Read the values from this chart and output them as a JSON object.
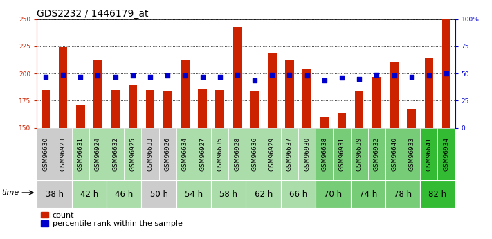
{
  "title": "GDS2232 / 1446179_at",
  "samples": [
    "GSM96630",
    "GSM96923",
    "GSM96631",
    "GSM96924",
    "GSM96632",
    "GSM96925",
    "GSM96633",
    "GSM96926",
    "GSM96634",
    "GSM96927",
    "GSM96635",
    "GSM96928",
    "GSM96636",
    "GSM96929",
    "GSM96637",
    "GSM96930",
    "GSM96638",
    "GSM96931",
    "GSM96639",
    "GSM96932",
    "GSM96640",
    "GSM96933",
    "GSM96641",
    "GSM96934"
  ],
  "count_values": [
    185,
    224,
    171,
    212,
    185,
    190,
    185,
    184,
    212,
    186,
    185,
    243,
    184,
    219,
    212,
    204,
    160,
    164,
    184,
    197,
    210,
    167,
    214,
    250
  ],
  "percentile_values": [
    47,
    49,
    47,
    48,
    47,
    48,
    47,
    48,
    48,
    47,
    47,
    49,
    44,
    49,
    49,
    48,
    44,
    46,
    45,
    49,
    48,
    47,
    48,
    50
  ],
  "time_groups": [
    {
      "label": "38 h",
      "start": 0,
      "end": 2,
      "color": "#cccccc"
    },
    {
      "label": "42 h",
      "start": 2,
      "end": 4,
      "color": "#aaddaa"
    },
    {
      "label": "46 h",
      "start": 4,
      "end": 6,
      "color": "#aaddaa"
    },
    {
      "label": "50 h",
      "start": 6,
      "end": 8,
      "color": "#cccccc"
    },
    {
      "label": "54 h",
      "start": 8,
      "end": 10,
      "color": "#aaddaa"
    },
    {
      "label": "58 h",
      "start": 10,
      "end": 12,
      "color": "#aaddaa"
    },
    {
      "label": "62 h",
      "start": 12,
      "end": 14,
      "color": "#aaddaa"
    },
    {
      "label": "66 h",
      "start": 14,
      "end": 16,
      "color": "#aaddaa"
    },
    {
      "label": "70 h",
      "start": 16,
      "end": 18,
      "color": "#77cc77"
    },
    {
      "label": "74 h",
      "start": 18,
      "end": 20,
      "color": "#77cc77"
    },
    {
      "label": "78 h",
      "start": 20,
      "end": 22,
      "color": "#77cc77"
    },
    {
      "label": "82 h",
      "start": 22,
      "end": 24,
      "color": "#33bb33"
    }
  ],
  "sample_box_colors": [
    "#cccccc",
    "#cccccc",
    "#aaddaa",
    "#aaddaa",
    "#aaddaa",
    "#aaddaa",
    "#cccccc",
    "#cccccc",
    "#aaddaa",
    "#aaddaa",
    "#aaddaa",
    "#aaddaa",
    "#aaddaa",
    "#aaddaa",
    "#aaddaa",
    "#aaddaa",
    "#77cc77",
    "#77cc77",
    "#77cc77",
    "#77cc77",
    "#77cc77",
    "#77cc77",
    "#33bb33",
    "#33bb33"
  ],
  "ylim_left": [
    150,
    250
  ],
  "ylim_right": [
    0,
    100
  ],
  "yticks_left": [
    150,
    175,
    200,
    225,
    250
  ],
  "yticks_right": [
    0,
    25,
    50,
    75,
    100
  ],
  "ytick_labels_right": [
    "0",
    "25",
    "50",
    "75",
    "100%"
  ],
  "bar_color": "#cc2200",
  "marker_color": "#0000cc",
  "bar_width": 0.5,
  "title_fontsize": 10,
  "tick_fontsize": 6.5,
  "label_fontsize": 8,
  "time_label_fontsize": 8.5,
  "legend_fontsize": 8
}
